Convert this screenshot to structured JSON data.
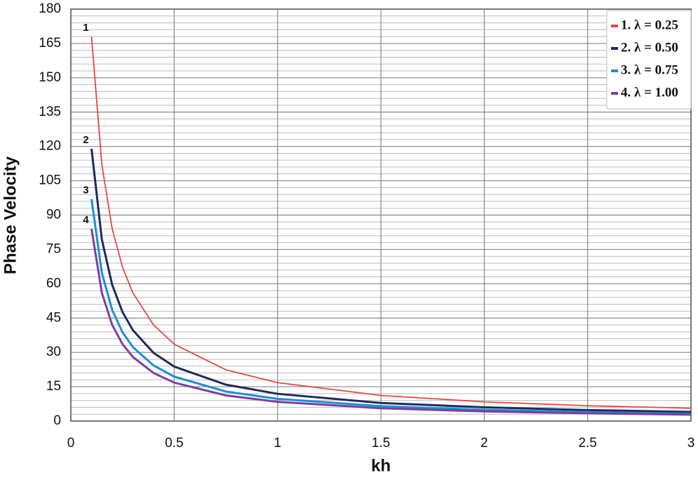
{
  "chart_data": {
    "type": "line",
    "x_label": "kh",
    "y_label": "Phase Velocity",
    "x": [
      0.1,
      0.15,
      0.2,
      0.25,
      0.3,
      0.4,
      0.5,
      0.75,
      1,
      1.5,
      2,
      2.5,
      3
    ],
    "series": [
      {
        "name": "1. λ = 0.25",
        "label": "1",
        "color": "#e8473f",
        "values": [
          168,
          112,
          84,
          67.2,
          56,
          42,
          33.6,
          22.4,
          16.8,
          11.2,
          8.4,
          6.7,
          5.6
        ]
      },
      {
        "name": "2. λ = 0.50",
        "label": "2",
        "color": "#1f2a5c",
        "values": [
          119,
          79.3,
          59.5,
          47.6,
          39.7,
          29.8,
          23.8,
          15.9,
          11.9,
          7.9,
          6.0,
          4.8,
          4.0
        ]
      },
      {
        "name": "3. λ = 0.75",
        "label": "3",
        "color": "#1b8fd2",
        "values": [
          97,
          64.7,
          48.5,
          38.8,
          32.3,
          24.3,
          19.4,
          12.9,
          9.7,
          6.5,
          4.9,
          3.9,
          3.2
        ]
      },
      {
        "name": "4. λ = 1.00",
        "label": "4",
        "color": "#7a3fa0",
        "values": [
          84,
          56,
          42,
          33.6,
          28,
          21,
          16.8,
          11.2,
          8.4,
          5.6,
          4.2,
          3.4,
          2.8
        ]
      }
    ],
    "xlim": [
      0,
      3
    ],
    "xticks": [
      0,
      0.5,
      1,
      1.5,
      2,
      2.5,
      3
    ],
    "ylim": [
      0,
      180
    ],
    "yticks": [
      0,
      15,
      30,
      45,
      60,
      75,
      90,
      105,
      120,
      135,
      150,
      165,
      180
    ],
    "grid": true,
    "legend": "top-right"
  }
}
